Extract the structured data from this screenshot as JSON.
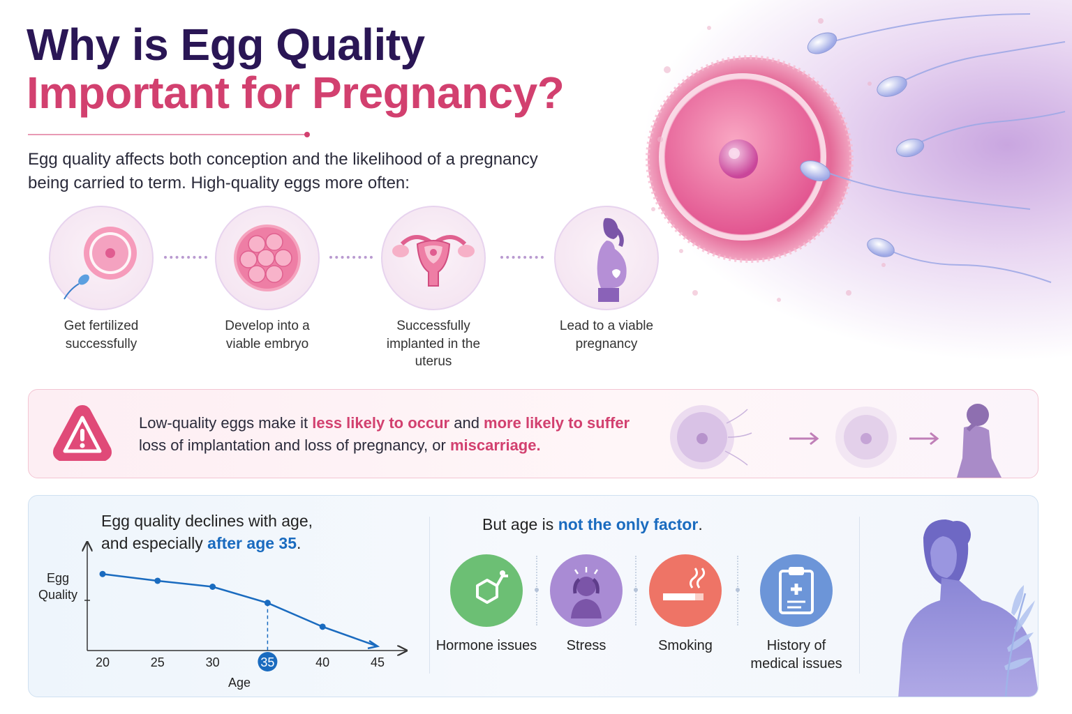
{
  "title": {
    "line1": "Why is Egg Quality",
    "line2": "Important for Pregnancy?"
  },
  "intro": "Egg quality affects both conception and the likelihood of a pregnancy being carried to term. High-quality eggs more often:",
  "steps": [
    {
      "label": "Get fertilized successfully",
      "icon": "fertilized-egg-icon"
    },
    {
      "label": "Develop into a viable embryo",
      "icon": "embryo-icon"
    },
    {
      "label": "Successfully implanted in the uterus",
      "icon": "uterus-icon"
    },
    {
      "label": "Lead to a viable pregnancy",
      "icon": "pregnant-woman-icon"
    }
  ],
  "warning": {
    "text_1": "Low-quality eggs make it ",
    "hl_1": "less likely to occur",
    "text_2": " and ",
    "hl_2": "more likely to suffer",
    "text_3": " loss of implantation and loss of pregnancy, or ",
    "hl_3": "miscarriage.",
    "icon": "warning-icon",
    "accent": "#d2406f"
  },
  "age": {
    "head_1": "Egg quality declines with age,",
    "head_2": "and especially ",
    "head_hl": "after age 35",
    "head_end": "."
  },
  "chart_data": {
    "type": "line",
    "ylabel": "Egg Quality",
    "xlabel": "Age",
    "x": [
      20,
      25,
      30,
      35,
      40,
      45
    ],
    "highlight_x": 35,
    "series": [
      {
        "values": [
          0.9,
          0.82,
          0.75,
          0.56,
          0.28,
          0.05
        ]
      }
    ],
    "ylim": [
      0,
      1
    ],
    "xlim": [
      20,
      45
    ],
    "line_color": "#1a6bbf"
  },
  "factors": {
    "head_1": "But age is ",
    "head_hl": "not the only factor",
    "head_end": ".",
    "items": [
      {
        "label": "Hormone issues",
        "icon": "hormone-molecule-icon",
        "color": "#6cbf74"
      },
      {
        "label": "Stress",
        "icon": "stressed-person-icon",
        "color": "#a98bd4"
      },
      {
        "label": "Smoking",
        "icon": "cigarette-icon",
        "color": "#ee7466"
      },
      {
        "label": "History of medical issues",
        "icon": "medical-clipboard-icon",
        "color": "#6c95d8"
      }
    ]
  },
  "colors": {
    "title_dark": "#2a1655",
    "title_pink": "#d2406f",
    "blue": "#1a6bbf"
  }
}
